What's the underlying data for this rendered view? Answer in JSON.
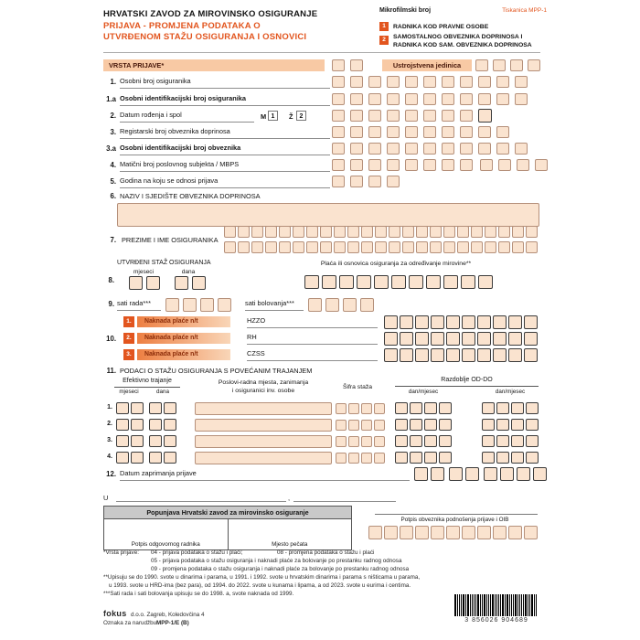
{
  "accent": "#e2551e",
  "box_fill": "#fae3cf",
  "header": {
    "institution": "HRVATSKI ZAVOD ZA MIROVINSKO OSIGURANJE",
    "title_line1": "PRIJAVA  -  PROMJENA  PODATAKA  O",
    "title_line2": "UTVRĐENOM  STAŽU  OSIGURANJA  I  OSNOVICI",
    "microfilm_label": "Mikrofilmski broj",
    "form_code": "Tiskanica MPP-1",
    "type1_num": "1",
    "type1_label": "RADNIKA KOD PRAVNE OSOBE",
    "type2_num": "2",
    "type2_label_line1": "SAMOSTALNOG OBVEZNIKA DOPRINOSA I",
    "type2_label_line2": "RADNIKA KOD SAM. OBVEZNIKA DOPRINOSA"
  },
  "sections": {
    "vrsta_prijave": "VRSTA PRIJAVE*",
    "ustrojstvena_jedinica": "Ustrojstvena jedinica"
  },
  "fields": {
    "f1": {
      "num": "1.",
      "label": "Osobni broj osiguranika"
    },
    "f1a": {
      "num": "1.a",
      "label": "Osobni identifikacijski broj osiguranika"
    },
    "f2": {
      "num": "2.",
      "label": "Datum rođenja i spol",
      "male_letter": "M",
      "male_code": "1",
      "female_letter": "Ž",
      "female_code": "2"
    },
    "f3": {
      "num": "3.",
      "label": "Registarski broj obveznika doprinosa"
    },
    "f3a": {
      "num": "3.a",
      "label": "Osobni identifikacijski broj obveznika"
    },
    "f4": {
      "num": "4.",
      "label": "Matični broj poslovnog subjekta / MBPS"
    },
    "f5": {
      "num": "5.",
      "label": "Godina na koju se odnosi prijava"
    },
    "f6": {
      "num": "6.",
      "label": "NAZIV I SJEDIŠTE OBVEZNIKA DOPRINOSA"
    },
    "f7": {
      "num": "7.",
      "label": "PREZIME I IME OSIGURANIKA"
    },
    "f8": {
      "num": "8.",
      "label": "UTVRĐENI STAŽ OSIGURANJA",
      "sub_months": "mjeseci",
      "sub_days": "dana",
      "salary_label": "Plaća ili osnovica osiguranja za određivanje mirovine**"
    },
    "f9": {
      "num": "9.",
      "work_hours_label": "sati rada***",
      "sick_hours_label": "sati bolovanja***"
    },
    "f10": {
      "num": "10.",
      "rows": [
        {
          "n": "1.",
          "label": "Naknada plaće n/t",
          "org": "HZZO"
        },
        {
          "n": "2.",
          "label": "Naknada plaće n/t",
          "org": "RH"
        },
        {
          "n": "3.",
          "label": "Naknada plaće n/t",
          "org": "CZSS"
        }
      ]
    },
    "f11": {
      "num": "11.",
      "label": "PODACI O STAŽU OSIGURANJA S POVEĆANIM TRAJANJEM",
      "col_effective": "Efektivno trajanje",
      "col_months": "mjeseci",
      "col_days": "dana",
      "col_jobs_line1": "Poslovi-radna mjesta, zanimanja",
      "col_jobs_line2": "i osiguranici inv. osobe",
      "col_code": "Šifra staža",
      "col_period": "Razdoblje OD-DO",
      "col_day_month": "dan/mjesec",
      "row_nums": [
        "1.",
        "2.",
        "3.",
        "4."
      ]
    },
    "f12": {
      "num": "12.",
      "label": "Datum zaprimanja prijave"
    },
    "place_label": "U",
    "comma": ","
  },
  "bottom": {
    "office_box_title": "Popunjava Hrvatski zavod za mirovinsko osiguranje",
    "office_signature": "Potpis odgovornog radnika",
    "office_stamp": "Mjesto pečata",
    "payer_signature": "Potpis obveznika podnošenja prijave i OIB"
  },
  "footnotes": {
    "vrsta_label": "*Vrsta prijave:",
    "code04": "04 - prijava podataka o stažu i plaći;",
    "code08": "08 - promjena podataka o stažu i plaći",
    "code05": "05 - prijava podataka o stažu osiguranja i naknadi plaće za bolovanje po prestanku radnog odnosa",
    "code09": "09 - promjena podataka o stažu osiguranja i naknadi plaće za bolovanje po prestanku radnog odnosa",
    "note2_line1": "**Upisuju se do 1990. svote u dinarima i parama, u 1991. i 1992. svote u hrvatskim dinarima i parama s ništicama u parama,",
    "note2_line2": "u 1993. svote u HRD-ima (bez para), od 1994. do 2022. svote u kunama i lipama, a od 2023. svote u eurima i centima.",
    "note3": "***Sati rada i sati bolovanja upisuju se do 1998. a, svote naknada od 1999."
  },
  "footer": {
    "printer_logo": "fokus",
    "printer_address": "d.o.o. Zagreb, Koledovčina 4",
    "order_label": "Oznaka za narudžbu:",
    "order_code": "MPP-1/E  (B)",
    "barcode_digits": "3 856026 904689"
  }
}
